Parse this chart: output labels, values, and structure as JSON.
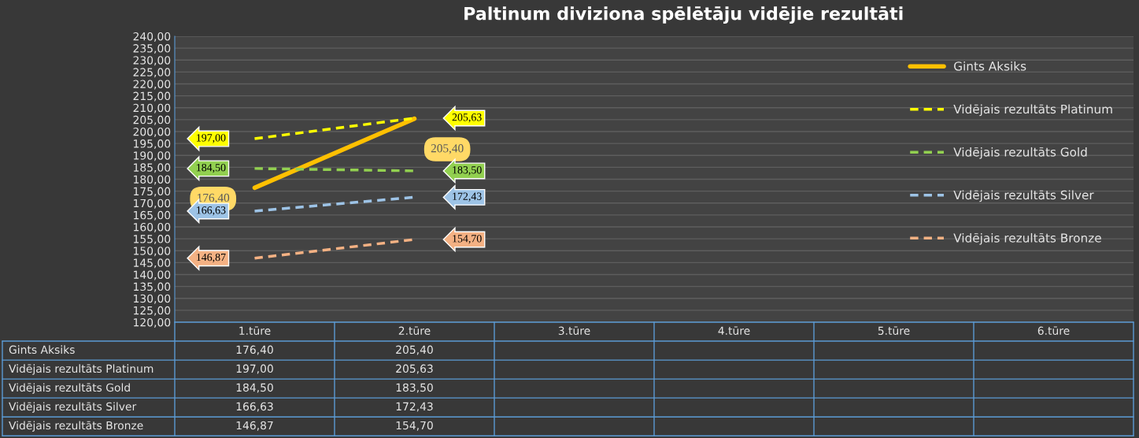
{
  "chart_data": {
    "type": "line",
    "title": "Paltinum diviziona spēlētāju vidējie rezultāti",
    "categories": [
      "1.tūre",
      "2.tūre",
      "3.tūre",
      "4.tūre",
      "5.tūre",
      "6.tūre"
    ],
    "series": [
      {
        "name": "Gints Aksiks",
        "color": "#ffc000",
        "line_style": "solid",
        "values": [
          176.4,
          205.4,
          null,
          null,
          null,
          null
        ],
        "value_labels": [
          "176,40",
          "205,40",
          null,
          null,
          null,
          null
        ]
      },
      {
        "name": "Vidējais rezultāts Platinum",
        "color": "#ffff00",
        "line_style": "dashed",
        "values": [
          197.0,
          205.63,
          null,
          null,
          null,
          null
        ],
        "value_labels": [
          "197,00",
          "205,63",
          null,
          null,
          null,
          null
        ]
      },
      {
        "name": "Vidējais rezultāts Gold",
        "color": "#92d050",
        "line_style": "dashed",
        "values": [
          184.5,
          183.5,
          null,
          null,
          null,
          null
        ],
        "value_labels": [
          "184,50",
          "183,50",
          null,
          null,
          null,
          null
        ]
      },
      {
        "name": "Vidējais rezultāts Silver",
        "color": "#9dc3e6",
        "line_style": "dashed",
        "values": [
          166.63,
          172.43,
          null,
          null,
          null,
          null
        ],
        "value_labels": [
          "166,63",
          "172,43",
          null,
          null,
          null,
          null
        ]
      },
      {
        "name": "Vidējais rezultāts Bronze",
        "color": "#f4b183",
        "line_style": "dashed",
        "values": [
          146.87,
          154.7,
          null,
          null,
          null,
          null
        ],
        "value_labels": [
          "146,87",
          "154,70",
          null,
          null,
          null,
          null
        ]
      }
    ],
    "ylim": [
      120,
      240
    ],
    "yticks": [
      {
        "value": 120,
        "label": "120,00"
      },
      {
        "value": 125,
        "label": "125,00"
      },
      {
        "value": 130,
        "label": "130,00"
      },
      {
        "value": 135,
        "label": "135,00"
      },
      {
        "value": 140,
        "label": "140,00"
      },
      {
        "value": 145,
        "label": "145,00"
      },
      {
        "value": 150,
        "label": "150,00"
      },
      {
        "value": 155,
        "label": "155,00"
      },
      {
        "value": 160,
        "label": "160,00"
      },
      {
        "value": 165,
        "label": "165,00"
      },
      {
        "value": 170,
        "label": "170,00"
      },
      {
        "value": 175,
        "label": "175,00"
      },
      {
        "value": 180,
        "label": "180,00"
      },
      {
        "value": 185,
        "label": "185,00"
      },
      {
        "value": 190,
        "label": "190,00"
      },
      {
        "value": 195,
        "label": "195,00"
      },
      {
        "value": 200,
        "label": "200,00"
      },
      {
        "value": 205,
        "label": "205,00"
      },
      {
        "value": 210,
        "label": "210,00"
      },
      {
        "value": 215,
        "label": "215,00"
      },
      {
        "value": 220,
        "label": "220,00"
      },
      {
        "value": 225,
        "label": "225,00"
      },
      {
        "value": 230,
        "label": "230,00"
      },
      {
        "value": 235,
        "label": "235,00"
      },
      {
        "value": 240,
        "label": "240,00"
      }
    ],
    "grid": "y",
    "legend": "top right",
    "marker": "none"
  }
}
